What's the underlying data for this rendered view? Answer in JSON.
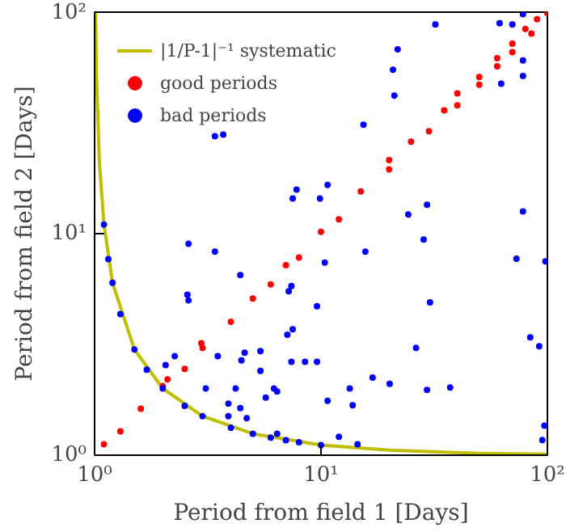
{
  "chart_data": {
    "type": "scatter",
    "xlabel": "Period from field 1 [Days]",
    "ylabel": "Period from field 2 [Days]",
    "log": "xy",
    "xlim": [
      1,
      100
    ],
    "ylim": [
      1,
      100
    ],
    "xticks": [
      {
        "value": 1,
        "label": "10⁰"
      },
      {
        "value": 10,
        "label": "10¹"
      },
      {
        "value": 100,
        "label": "10²"
      }
    ],
    "yticks": [
      {
        "value": 1,
        "label": "10⁰"
      },
      {
        "value": 10,
        "label": "10¹"
      },
      {
        "value": 100,
        "label": "10²"
      }
    ],
    "grid": false,
    "legend": "top left",
    "marker": "circle",
    "series": [
      {
        "name": "|1/P-1|⁻¹ systematic",
        "type": "line",
        "marker": "none",
        "color": "#bfbf00",
        "x": [
          1.0102,
          1.02,
          1.05,
          1.1,
          1.2,
          1.5,
          2,
          3,
          5,
          10,
          20,
          50,
          100
        ],
        "values": [
          99,
          51,
          21,
          11,
          6,
          3,
          2,
          1.5,
          1.25,
          1.11,
          1.053,
          1.02,
          1.01
        ]
      },
      {
        "name": "good periods",
        "color": "#ff0000",
        "x": [
          1.1,
          1.3,
          1.6,
          2,
          2.1,
          2.5,
          3,
          2.96,
          4,
          5,
          6,
          7,
          8,
          10,
          12,
          15,
          20,
          20,
          25,
          30,
          35,
          40,
          40,
          50,
          50,
          60,
          60,
          70,
          70,
          80,
          85,
          90,
          100
        ],
        "values": [
          1.12,
          1.28,
          1.62,
          2.05,
          2.2,
          2.45,
          3.05,
          3.2,
          4,
          5.1,
          5.9,
          7.2,
          7.8,
          10.2,
          11.6,
          15.5,
          19.5,
          21.5,
          26,
          29,
          36,
          38,
          43,
          51,
          47,
          62,
          57,
          72,
          66,
          84,
          80,
          93,
          99
        ]
      },
      {
        "name": "bad periods",
        "color": "#0000ff",
        "x": [
          1.1,
          1.15,
          1.2,
          1.3,
          1.5,
          1.7,
          2,
          2.5,
          3,
          4,
          5,
          6,
          7,
          8,
          10,
          32,
          61.5,
          70,
          78,
          21.8,
          20.8,
          21.1,
          15.4,
          3.4,
          3.7,
          78,
          78,
          62.5,
          7.8,
          7.5,
          9.9,
          10.7,
          29.4,
          24.3,
          78,
          28.4,
          2.6,
          3.4,
          10.4,
          73,
          15.7,
          98,
          4.4,
          7.4,
          7.2,
          2.57,
          2.6,
          30.3,
          9.6,
          7.5,
          7.1,
          84,
          92,
          26.3,
          2.26,
          3.5,
          4.6,
          5.4,
          4.45,
          7.4,
          8.5,
          9.6,
          2.06,
          5.4,
          16.9,
          20.1,
          3.1,
          4.2,
          6.2,
          6.4,
          13.4,
          29.4,
          37.2,
          10.7,
          5.7,
          13.8,
          3.9,
          4.4,
          3.9,
          4.7,
          97,
          95,
          12,
          14.5,
          6.4
        ],
        "values": [
          11,
          7.67,
          6,
          4.33,
          3,
          2.43,
          2,
          1.67,
          1.5,
          1.33,
          1.25,
          1.2,
          1.167,
          1.143,
          1.11,
          88,
          89,
          88,
          98,
          68,
          55,
          42,
          31,
          27.5,
          28,
          60.5,
          51.5,
          47.5,
          15.8,
          14.4,
          14.4,
          16.6,
          13.5,
          12.2,
          12.6,
          9.4,
          9.0,
          8.3,
          7.4,
          7.7,
          8.3,
          7.5,
          6.5,
          5.8,
          5.5,
          5.3,
          5.0,
          4.9,
          4.7,
          3.7,
          3.5,
          3.4,
          3.1,
          3.05,
          2.8,
          2.8,
          2.9,
          2.95,
          2.68,
          2.64,
          2.64,
          2.64,
          2.55,
          2.4,
          2.24,
          2.1,
          2.0,
          2.0,
          2.0,
          1.94,
          2.0,
          1.97,
          2.02,
          1.76,
          1.82,
          1.68,
          1.71,
          1.63,
          1.5,
          1.47,
          1.36,
          1.17,
          1.21,
          1.12,
          1.25
        ]
      }
    ]
  }
}
